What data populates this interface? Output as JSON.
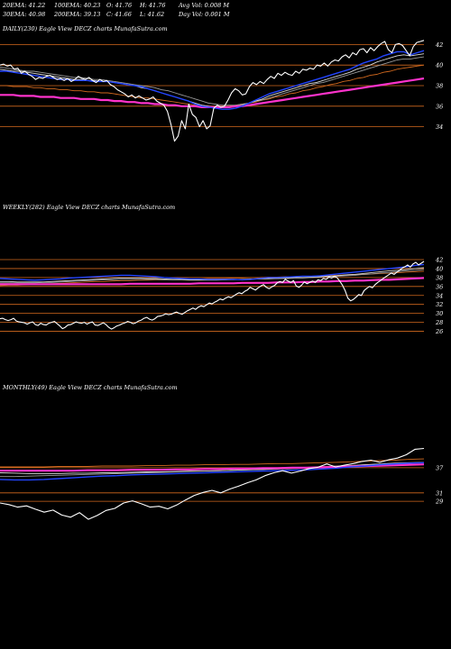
{
  "header": {
    "row1": [
      "20EMA: 41.22",
      "100EMA: 40.23",
      "O: 41.76",
      "H: 41.76",
      "Avg Vol: 0.008 M"
    ],
    "row2": [
      "30EMA: 40.98",
      "200EMA: 39.13",
      "C: 41.66",
      "L: 41.62",
      "Day Vol: 0.001 M"
    ]
  },
  "colors": {
    "background": "#000000",
    "price": "#ffffff",
    "ema_fast": "#2244ff",
    "ema_mid_light": "#d9d9d9",
    "ema_mid_grey": "#9a9a9a",
    "ema_orange": "#d2691e",
    "ema_slow": "#ff33cc",
    "gridline": "#d2691e"
  },
  "chart_data": [
    {
      "type": "line",
      "title": "DAILY(230) Eagle  View  DECZ charts MunafaSutra.com",
      "yticks": [
        42,
        40,
        38,
        36,
        34
      ],
      "ylim": [
        33,
        43
      ],
      "grid": true,
      "series_count": 7,
      "price": [
        40.0,
        40.1,
        39.9,
        40.0,
        39.6,
        39.7,
        39.2,
        39.4,
        39.1,
        38.9,
        38.6,
        38.8,
        38.7,
        38.9,
        39.0,
        38.8,
        38.6,
        38.7,
        38.5,
        38.7,
        38.4,
        38.6,
        38.9,
        38.7,
        38.6,
        38.8,
        38.5,
        38.3,
        38.6,
        38.4,
        38.5,
        38.1,
        37.9,
        37.6,
        37.4,
        37.2,
        36.9,
        37.1,
        36.8,
        37.0,
        36.8,
        36.6,
        36.7,
        36.9,
        36.5,
        36.3,
        36.1,
        35.5,
        34.2,
        32.6,
        33.1,
        34.6,
        33.8,
        36.2,
        35.2,
        34.9,
        34.0,
        34.6,
        33.8,
        34.1,
        35.8,
        36.1,
        35.9,
        36.0,
        36.6,
        37.3,
        37.7,
        37.5,
        37.1,
        37.2,
        37.9,
        38.3,
        38.1,
        38.4,
        38.2,
        38.6,
        38.9,
        38.7,
        39.2,
        39.0,
        39.3,
        39.1,
        39.0,
        39.4,
        39.2,
        39.6,
        39.5,
        39.7,
        39.6,
        40.0,
        39.9,
        40.2,
        39.9,
        40.3,
        40.5,
        40.4,
        40.8,
        41.0,
        40.7,
        41.2,
        41.0,
        41.5,
        41.6,
        41.2,
        41.7,
        41.4,
        41.8,
        42.1,
        42.3,
        41.5,
        41.2,
        42.0,
        42.1,
        41.9,
        41.4,
        40.9,
        41.8,
        42.2,
        42.3,
        42.4
      ],
      "ema_fast": [
        39.4,
        39.4,
        39.3,
        39.2,
        39.1,
        39.0,
        38.9,
        38.8,
        38.7,
        38.6,
        38.6,
        38.5,
        38.5,
        38.5,
        38.4,
        38.4,
        38.4,
        38.3,
        38.2,
        38.1,
        38.0,
        37.9,
        37.7,
        37.5,
        37.3,
        37.1,
        36.9,
        36.7,
        36.5,
        36.2,
        36.0,
        35.9,
        35.8,
        35.7,
        35.7,
        35.8,
        36.0,
        36.3,
        36.6,
        36.9,
        37.2,
        37.4,
        37.6,
        37.8,
        38.0,
        38.2,
        38.4,
        38.6,
        38.8,
        39.0,
        39.2,
        39.4,
        39.6,
        39.9,
        40.2,
        40.4,
        40.6,
        40.9,
        41.1,
        41.3,
        41.3,
        41.0,
        41.2,
        41.4
      ],
      "ema_mid_light": [
        39.6,
        39.5,
        39.4,
        39.4,
        39.3,
        39.2,
        39.1,
        39.0,
        38.9,
        38.8,
        38.7,
        38.6,
        38.6,
        38.5,
        38.5,
        38.4,
        38.4,
        38.3,
        38.2,
        38.1,
        38.0,
        37.8,
        37.7,
        37.5,
        37.3,
        37.1,
        36.9,
        36.7,
        36.5,
        36.3,
        36.1,
        36.0,
        35.9,
        35.9,
        35.9,
        36.0,
        36.1,
        36.3,
        36.5,
        36.7,
        37.0,
        37.2,
        37.4,
        37.6,
        37.8,
        38.0,
        38.2,
        38.3,
        38.5,
        38.7,
        38.9,
        39.1,
        39.3,
        39.6,
        39.8,
        40.0,
        40.3,
        40.5,
        40.7,
        40.9,
        41.0,
        40.9,
        41.0,
        41.1
      ],
      "ema_mid_grey": [
        39.8,
        39.7,
        39.6,
        39.5,
        39.4,
        39.4,
        39.3,
        39.2,
        39.1,
        39.0,
        38.9,
        38.8,
        38.8,
        38.7,
        38.6,
        38.6,
        38.5,
        38.4,
        38.3,
        38.2,
        38.1,
        38.0,
        37.9,
        37.8,
        37.6,
        37.5,
        37.3,
        37.1,
        36.9,
        36.7,
        36.5,
        36.3,
        36.2,
        36.1,
        36.1,
        36.1,
        36.2,
        36.3,
        36.5,
        36.6,
        36.8,
        37.0,
        37.2,
        37.4,
        37.6,
        37.8,
        38.0,
        38.2,
        38.3,
        38.5,
        38.7,
        38.9,
        39.1,
        39.3,
        39.5,
        39.7,
        39.9,
        40.1,
        40.3,
        40.5,
        40.6,
        40.6,
        40.7,
        40.8
      ],
      "ema_orange": [
        38.0,
        38.0,
        37.9,
        37.9,
        37.9,
        37.8,
        37.8,
        37.7,
        37.7,
        37.6,
        37.6,
        37.5,
        37.5,
        37.4,
        37.4,
        37.3,
        37.3,
        37.2,
        37.1,
        37.0,
        36.9,
        36.8,
        36.8,
        36.7,
        36.6,
        36.5,
        36.4,
        36.3,
        36.2,
        36.1,
        36.0,
        36.0,
        36.0,
        36.0,
        36.0,
        36.1,
        36.2,
        36.3,
        36.4,
        36.6,
        36.7,
        36.9,
        37.0,
        37.2,
        37.3,
        37.5,
        37.6,
        37.8,
        37.9,
        38.1,
        38.2,
        38.4,
        38.5,
        38.7,
        38.8,
        39.0,
        39.1,
        39.3,
        39.4,
        39.6,
        39.7,
        39.8,
        39.9,
        40.0
      ],
      "ema_slow": [
        37.1,
        37.1,
        37.1,
        37.0,
        37.0,
        37.0,
        36.9,
        36.9,
        36.9,
        36.8,
        36.8,
        36.8,
        36.7,
        36.7,
        36.7,
        36.6,
        36.6,
        36.5,
        36.5,
        36.4,
        36.4,
        36.3,
        36.3,
        36.2,
        36.2,
        36.1,
        36.1,
        36.0,
        36.0,
        36.0,
        35.9,
        35.9,
        35.9,
        35.9,
        35.9,
        36.0,
        36.0,
        36.1,
        36.2,
        36.3,
        36.4,
        36.5,
        36.6,
        36.7,
        36.8,
        36.9,
        37.0,
        37.1,
        37.2,
        37.3,
        37.4,
        37.5,
        37.6,
        37.7,
        37.8,
        37.9,
        38.0,
        38.1,
        38.2,
        38.3,
        38.4,
        38.5,
        38.6,
        38.7
      ]
    },
    {
      "type": "line",
      "title": "WEEKLY(282) Eagle  View  DECZ charts MunafaSutra.com",
      "yticks": [
        42,
        40,
        38,
        36,
        34,
        32,
        30,
        28,
        26
      ],
      "ylim": [
        24.5,
        43
      ],
      "grid": true,
      "series_count": 7,
      "price": [
        28.8,
        28.9,
        28.6,
        28.4,
        28.6,
        28.9,
        28.3,
        28.1,
        28.0,
        27.9,
        27.6,
        27.9,
        28.1,
        27.5,
        27.3,
        27.8,
        27.5,
        27.4,
        27.8,
        28.0,
        28.2,
        27.7,
        27.2,
        26.6,
        26.9,
        27.4,
        27.5,
        27.8,
        28.1,
        27.9,
        27.8,
        28.0,
        27.6,
        27.9,
        28.1,
        27.4,
        27.3,
        27.6,
        27.9,
        27.5,
        26.9,
        26.5,
        26.8,
        27.2,
        27.4,
        27.7,
        27.9,
        28.2,
        28.0,
        27.7,
        27.9,
        28.3,
        28.5,
        28.9,
        29.1,
        28.7,
        28.5,
        28.8,
        29.3,
        29.4,
        29.6,
        29.9,
        29.7,
        29.8,
        30.1,
        30.3,
        30.0,
        29.8,
        30.2,
        30.6,
        30.9,
        31.2,
        30.9,
        31.4,
        31.7,
        31.5,
        31.9,
        32.3,
        32.1,
        32.5,
        32.8,
        33.2,
        33.0,
        33.4,
        33.7,
        33.5,
        33.9,
        34.3,
        34.6,
        34.4,
        34.9,
        35.2,
        35.8,
        35.5,
        35.2,
        35.7,
        36.1,
        36.4,
        35.8,
        35.5,
        35.9,
        36.2,
        36.8,
        37.1,
        36.9,
        37.6,
        37.2,
        36.9,
        37.3,
        36.1,
        35.8,
        36.3,
        37.0,
        36.6,
        36.9,
        37.2,
        36.9,
        37.5,
        37.3,
        37.8,
        37.6,
        38.1,
        37.9,
        38.2,
        38.0,
        37.2,
        36.3,
        35.1,
        33.4,
        32.8,
        33.1,
        33.6,
        34.2,
        34.0,
        35.1,
        35.6,
        36.0,
        35.7,
        36.4,
        36.9,
        37.3,
        37.8,
        38.2,
        38.6,
        39.0,
        38.7,
        39.2,
        39.6,
        40.1,
        40.4,
        40.8,
        40.3,
        41.0,
        41.4,
        40.8,
        41.2,
        41.6
      ],
      "ema_fast": [
        37.8,
        37.7,
        37.6,
        37.5,
        37.4,
        37.5,
        37.6,
        37.7,
        37.9,
        38.0,
        38.1,
        38.2,
        38.3,
        38.4,
        38.5,
        38.5,
        38.4,
        38.3,
        38.2,
        38.0,
        37.9,
        37.8,
        37.7,
        37.7,
        37.6,
        37.6,
        37.6,
        37.6,
        37.5,
        37.6,
        37.8,
        38.0,
        38.0,
        38.1,
        38.2,
        38.3,
        38.3,
        38.4,
        38.6,
        38.8,
        39.0,
        39.2,
        39.4,
        39.6,
        39.8,
        40.0,
        40.2,
        40.4,
        40.7,
        40.9
      ],
      "ema_mid_light": [
        37.1,
        37.1,
        37.0,
        37.0,
        37.0,
        37.0,
        37.1,
        37.2,
        37.3,
        37.4,
        37.5,
        37.6,
        37.7,
        37.8,
        37.9,
        37.9,
        37.9,
        37.8,
        37.8,
        37.7,
        37.6,
        37.6,
        37.5,
        37.5,
        37.5,
        37.5,
        37.5,
        37.6,
        37.6,
        37.7,
        37.7,
        37.8,
        37.8,
        37.9,
        38.0,
        38.0,
        38.1,
        38.2,
        38.3,
        38.4,
        38.6,
        38.7,
        38.9,
        39.1,
        39.3,
        39.5,
        39.6,
        39.8,
        40.0,
        40.2
      ],
      "ema_mid_grey": [
        36.8,
        36.8,
        36.8,
        36.8,
        36.8,
        36.9,
        36.9,
        37.0,
        37.1,
        37.2,
        37.3,
        37.4,
        37.5,
        37.5,
        37.6,
        37.6,
        37.6,
        37.6,
        37.6,
        37.5,
        37.5,
        37.5,
        37.4,
        37.4,
        37.4,
        37.4,
        37.5,
        37.5,
        37.6,
        37.6,
        37.7,
        37.7,
        37.8,
        37.8,
        37.9,
        37.9,
        38.0,
        38.1,
        38.2,
        38.3,
        38.4,
        38.5,
        38.7,
        38.8,
        39.0,
        39.1,
        39.3,
        39.5,
        39.6,
        39.8
      ],
      "ema_orange": [
        36.2,
        36.3,
        36.3,
        36.4,
        36.5,
        36.6,
        36.6,
        36.7,
        36.8,
        36.9,
        37.0,
        37.1,
        37.1,
        37.2,
        37.3,
        37.3,
        37.4,
        37.4,
        37.5,
        37.5,
        37.6,
        37.6,
        37.7,
        37.7,
        37.8,
        37.8,
        37.8,
        37.9,
        37.9,
        38.0,
        38.0,
        38.1,
        38.1,
        38.2,
        38.2,
        38.3,
        38.3,
        38.4,
        38.4,
        38.5,
        38.6,
        38.7,
        38.7,
        38.8,
        38.9,
        39.0,
        39.1,
        39.2,
        39.3,
        39.4
      ],
      "ema_slow": [
        36.5,
        36.5,
        36.5,
        36.5,
        36.5,
        36.5,
        36.5,
        36.5,
        36.5,
        36.5,
        36.5,
        36.5,
        36.5,
        36.5,
        36.5,
        36.6,
        36.6,
        36.6,
        36.6,
        36.6,
        36.6,
        36.6,
        36.6,
        36.7,
        36.7,
        36.7,
        36.7,
        36.7,
        36.8,
        36.8,
        36.8,
        36.8,
        36.9,
        36.9,
        36.9,
        37.0,
        37.0,
        37.1,
        37.1,
        37.2,
        37.2,
        37.3,
        37.3,
        37.4,
        37.5,
        37.5,
        37.6,
        37.7,
        37.8,
        37.9
      ]
    },
    {
      "type": "line",
      "title": "MONTHLY(49) Eagle  View  DECZ charts MunafaSutra.com",
      "yticks": [
        37,
        31,
        29
      ],
      "ylim": [
        23,
        43
      ],
      "grid": true,
      "series_count": 7,
      "price": [
        28.6,
        28.2,
        27.6,
        27.9,
        27.1,
        26.4,
        26.9,
        25.7,
        25.2,
        26.3,
        24.7,
        25.6,
        26.8,
        27.3,
        28.6,
        29.1,
        28.4,
        27.6,
        27.8,
        27.2,
        28.1,
        29.3,
        30.4,
        31.1,
        31.6,
        31.0,
        31.9,
        32.6,
        33.4,
        34.1,
        35.1,
        35.8,
        36.3,
        35.7,
        36.2,
        36.8,
        37.1,
        37.9,
        37.2,
        37.6,
        38.0,
        38.5,
        38.8,
        38.3,
        38.9,
        39.3,
        40.1,
        41.4,
        41.6
      ],
      "ema_fast": [
        34.2,
        34.1,
        34.1,
        34.2,
        34.4,
        34.6,
        34.8,
        35.0,
        35.1,
        35.3,
        35.4,
        35.5,
        35.6,
        35.7,
        35.8,
        35.9,
        36.0,
        36.1,
        36.2,
        36.3,
        36.4,
        36.5,
        36.7,
        36.9,
        37.2,
        37.4,
        37.7,
        37.9,
        38.1,
        38.2
      ],
      "ema_mid_light": [
        35.8,
        35.7,
        35.6,
        35.6,
        35.6,
        35.7,
        35.7,
        35.8,
        35.8,
        35.9,
        36.0,
        36.0,
        36.1,
        36.2,
        36.2,
        36.3,
        36.4,
        36.5,
        36.6,
        36.7,
        36.8,
        36.9,
        37.1,
        37.3,
        37.5,
        37.7,
        37.9,
        38.1,
        38.2,
        38.3
      ],
      "ema_mid_grey": [
        34.9,
        34.9,
        35.0,
        35.1,
        35.2,
        35.3,
        35.4,
        35.5,
        35.6,
        35.7,
        35.8,
        35.9,
        36.0,
        36.1,
        36.2,
        36.3,
        36.4,
        36.5,
        36.6,
        36.8,
        36.9,
        37.1,
        37.2,
        37.4,
        37.5,
        37.7,
        37.8,
        38.0,
        38.1,
        38.2
      ],
      "ema_orange": [
        37.2,
        37.2,
        37.2,
        37.2,
        37.3,
        37.3,
        37.3,
        37.4,
        37.4,
        37.4,
        37.5,
        37.5,
        37.6,
        37.6,
        37.7,
        37.7,
        37.8,
        37.8,
        37.9,
        38.0,
        38.0,
        38.1,
        38.2,
        38.3,
        38.4,
        38.6,
        38.7,
        38.8,
        39.0,
        39.1
      ],
      "ema_slow": [
        36.3,
        36.3,
        36.3,
        36.3,
        36.3,
        36.3,
        36.4,
        36.4,
        36.4,
        36.5,
        36.5,
        36.5,
        36.6,
        36.6,
        36.7,
        36.7,
        36.8,
        36.8,
        36.9,
        36.9,
        37.0,
        37.0,
        37.1,
        37.2,
        37.3,
        37.4,
        37.5,
        37.6,
        37.7,
        37.8
      ]
    }
  ]
}
